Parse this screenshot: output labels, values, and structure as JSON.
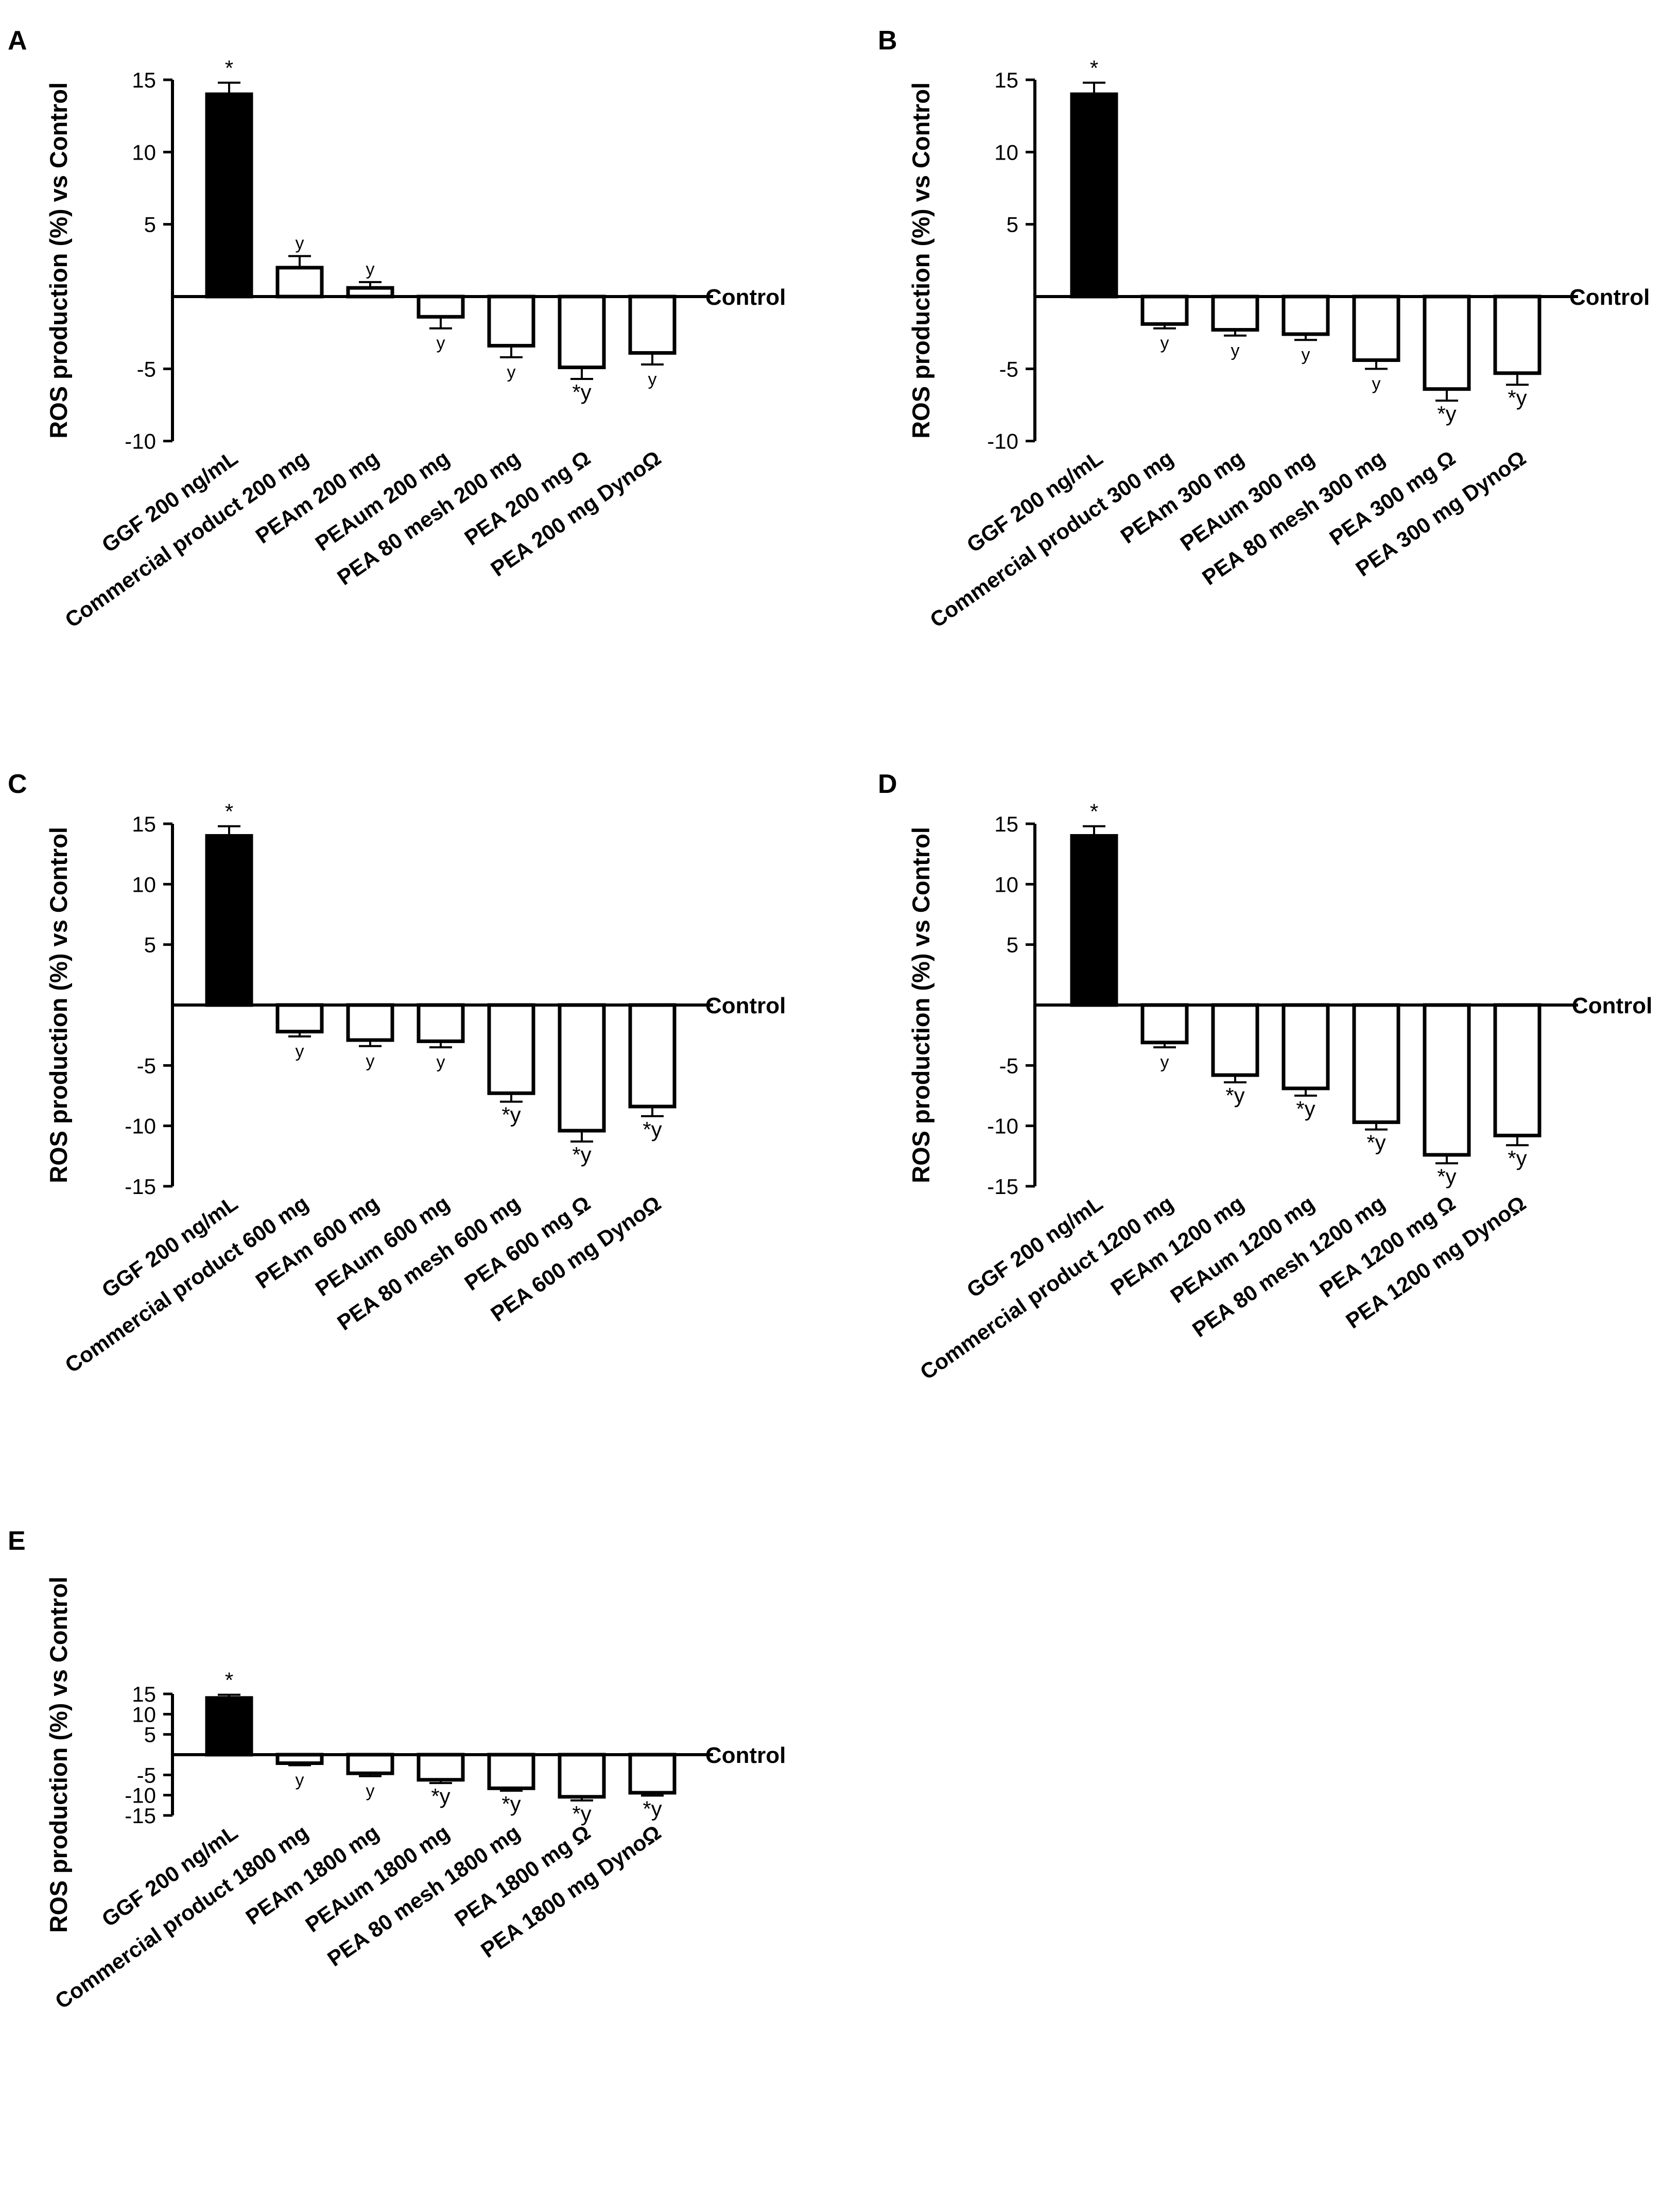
{
  "colors": {
    "background": "#ffffff",
    "ink": "#000000",
    "ggf_bar": "#000000",
    "treatment_bar": "#ffffff"
  },
  "chart_data": [
    {
      "type": "bar",
      "panel": "A",
      "ylabel": "ROS production (%) vs Control",
      "reference_line_label": "Control",
      "ylim": [
        -10,
        15
      ],
      "yticks": [
        15,
        10,
        5,
        -5,
        -10
      ],
      "categories": [
        "GGF 200 ng/mL",
        "Commercial product 200 mg",
        "PEAm 200 mg",
        "PEAum 200 mg",
        "PEA 80 mesh 200 mg",
        "PEA 200 mg Ω",
        "PEA 200 mg DynoΩ"
      ],
      "values": [
        14.0,
        2.0,
        0.6,
        -1.4,
        -3.4,
        -4.9,
        -3.9
      ],
      "errors": [
        0.8,
        0.8,
        0.4,
        0.8,
        0.8,
        0.8,
        0.8
      ],
      "annotations": [
        "*",
        "y",
        "y",
        "y",
        "y",
        "*y",
        "y"
      ]
    },
    {
      "type": "bar",
      "panel": "B",
      "ylabel": "ROS production (%) vs Control",
      "reference_line_label": "Control",
      "ylim": [
        -10,
        15
      ],
      "yticks": [
        15,
        10,
        5,
        -5,
        -10
      ],
      "categories": [
        "GGF 200 ng/mL",
        "Commercial product 300 mg",
        "PEAm 300 mg",
        "PEAum 300 mg",
        "PEA 80 mesh 300 mg",
        "PEA 300 mg Ω",
        "PEA 300 mg DynoΩ"
      ],
      "values": [
        14.0,
        -1.9,
        -2.3,
        -2.6,
        -4.4,
        -6.4,
        -5.3
      ],
      "errors": [
        0.8,
        0.3,
        0.4,
        0.4,
        0.6,
        0.8,
        0.8
      ],
      "annotations": [
        "*",
        "y",
        "y",
        "y",
        "y",
        "*y",
        "*y"
      ]
    },
    {
      "type": "bar",
      "panel": "C",
      "ylabel": "ROS production (%) vs Control",
      "reference_line_label": "Control",
      "ylim": [
        -15,
        15
      ],
      "yticks": [
        15,
        10,
        5,
        -5,
        -10,
        -15
      ],
      "categories": [
        "GGF 200 ng/mL",
        "Commercial product 600 mg",
        "PEAm 600 mg",
        "PEAum 600 mg",
        "PEA 80 mesh 600 mg",
        "PEA 600 mg Ω",
        "PEA 600 mg DynoΩ"
      ],
      "values": [
        14.0,
        -2.2,
        -2.9,
        -3.0,
        -7.3,
        -10.4,
        -8.4
      ],
      "errors": [
        0.8,
        0.4,
        0.5,
        0.5,
        0.7,
        0.9,
        0.8
      ],
      "annotations": [
        "*",
        "y",
        "y",
        "y",
        "*y",
        "*y",
        "*y"
      ]
    },
    {
      "type": "bar",
      "panel": "D",
      "ylabel": "ROS production (%) vs Control",
      "reference_line_label": "Control",
      "ylim": [
        -15,
        15
      ],
      "yticks": [
        15,
        10,
        5,
        -5,
        -10,
        -15
      ],
      "categories": [
        "GGF 200 ng/mL",
        "Commercial product 1200 mg",
        "PEAm 1200 mg",
        "PEAum 1200 mg",
        "PEA 80 mesh 1200 mg",
        "PEA 1200 mg Ω",
        "PEA 1200 mg DynoΩ"
      ],
      "values": [
        14.0,
        -3.1,
        -5.8,
        -6.9,
        -9.7,
        -12.4,
        -10.8
      ],
      "errors": [
        0.8,
        0.4,
        0.6,
        0.6,
        0.6,
        0.7,
        0.8
      ],
      "annotations": [
        "*",
        "y",
        "*y",
        "*y",
        "*y",
        "*y",
        "*y"
      ]
    },
    {
      "type": "bar",
      "panel": "E",
      "ylabel": "ROS production (%) vs Control",
      "reference_line_label": "Control",
      "ylim": [
        -15,
        15
      ],
      "yticks": [
        15,
        10,
        5,
        -5,
        -10,
        -15
      ],
      "categories": [
        "GGF 200 ng/mL",
        "Commercial product 1800 mg",
        "PEAm 1800 mg",
        "PEAum 1800 mg",
        "PEA 80 mesh 1800 mg",
        "PEA 1800 mg Ω",
        "PEA 1800 mg DynoΩ"
      ],
      "values": [
        14.0,
        -2.1,
        -4.6,
        -6.2,
        -8.3,
        -10.4,
        -9.4
      ],
      "errors": [
        0.8,
        0.5,
        0.7,
        0.8,
        0.6,
        0.9,
        0.7
      ],
      "annotations": [
        "*",
        "y",
        "y",
        "*y",
        "*y",
        "*y",
        "*y"
      ]
    }
  ]
}
